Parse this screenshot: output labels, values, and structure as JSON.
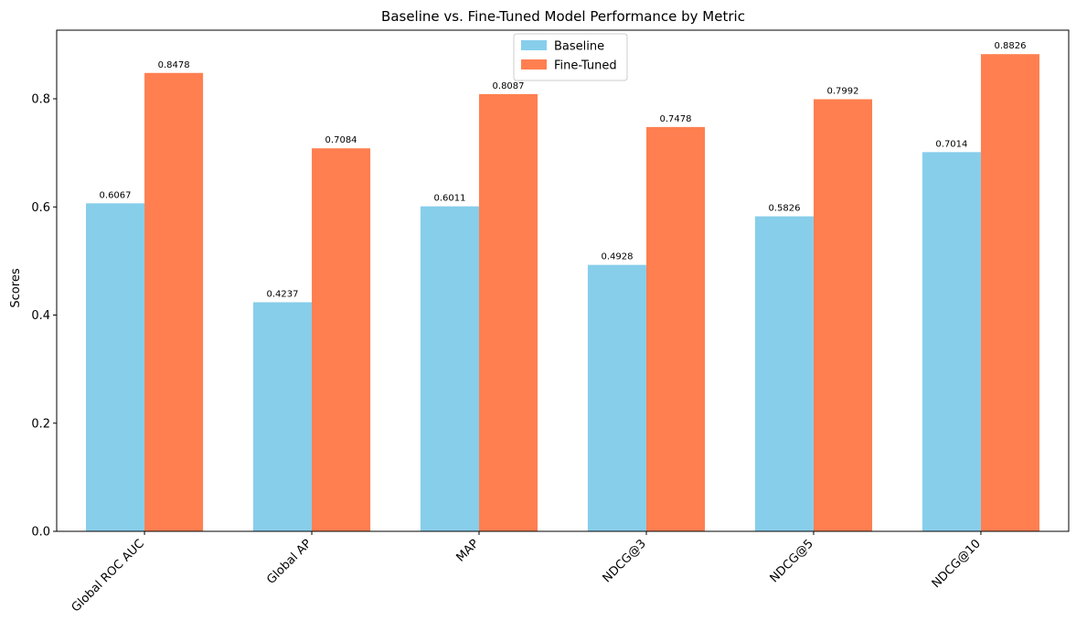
{
  "chart_data": {
    "type": "bar",
    "title": "Baseline vs. Fine-Tuned Model Performance by Metric",
    "xlabel": "",
    "ylabel": "Scores",
    "categories": [
      "Global ROC AUC",
      "Global AP",
      "MAP",
      "NDCG@3",
      "NDCG@5",
      "NDCG@10"
    ],
    "series": [
      {
        "name": "Baseline",
        "color": "#87ceeb",
        "values": [
          0.6067,
          0.4237,
          0.6011,
          0.4928,
          0.5826,
          0.7014
        ],
        "labels": [
          "0.6067",
          "0.4237",
          "0.6011",
          "0.4928",
          "0.5826",
          "0.7014"
        ]
      },
      {
        "name": "Fine-Tuned",
        "color": "#ff7f50",
        "values": [
          0.8478,
          0.7084,
          0.8087,
          0.7478,
          0.7992,
          0.8826
        ],
        "labels": [
          "0.8478",
          "0.7084",
          "0.8087",
          "0.7478",
          "0.7992",
          "0.8826"
        ]
      }
    ],
    "ylim": [
      0,
      0.9269
    ],
    "yticks": [
      0.0,
      0.2,
      0.4,
      0.6,
      0.8
    ],
    "ytick_labels": [
      "0.0",
      "0.2",
      "0.4",
      "0.6",
      "0.8"
    ],
    "grid": false,
    "legend": "upper center"
  }
}
